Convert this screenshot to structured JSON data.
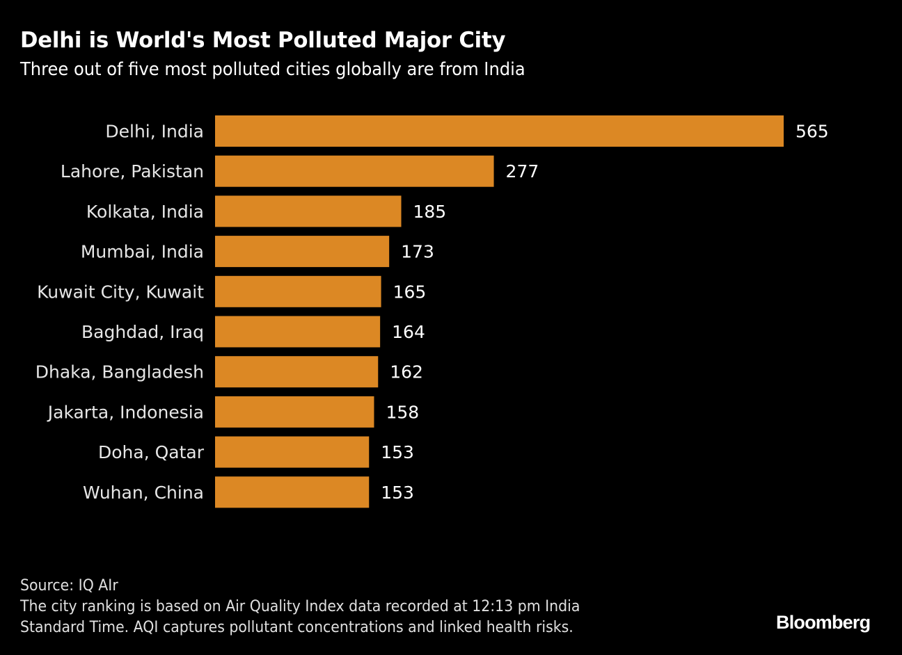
{
  "header": {
    "title": "Delhi is World's Most Polluted Major City",
    "subtitle": "Three out of five most polluted cities globally are from India"
  },
  "chart_data": {
    "type": "bar",
    "orientation": "horizontal",
    "title": "Delhi is World's Most Polluted Major City",
    "subtitle": "Three out of five most polluted cities globally are from India",
    "xlabel": "",
    "ylabel": "",
    "categories": [
      "Delhi, India",
      "Lahore, Pakistan",
      "Kolkata, India",
      "Mumbai, India",
      "Kuwait City, Kuwait",
      "Baghdad, Iraq",
      "Dhaka, Bangladesh",
      "Jakarta, Indonesia",
      "Doha, Qatar",
      "Wuhan, China"
    ],
    "values": [
      565,
      277,
      185,
      173,
      165,
      164,
      162,
      158,
      153,
      153
    ],
    "xlim": [
      0,
      565
    ],
    "grid": false,
    "legend": "none",
    "data_labels": true,
    "bar_color": "#DC8824"
  },
  "footer": {
    "source": "Source: IQ AIr",
    "note_line1": "The city ranking is based on Air Quality Index data recorded at 12:13 pm India",
    "note_line2": "Standard Time. AQI captures pollutant concentrations and linked health risks."
  },
  "brand": {
    "name": "Bloomberg"
  }
}
